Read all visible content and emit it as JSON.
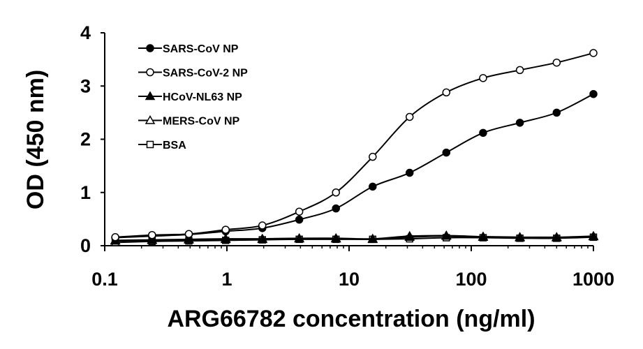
{
  "chart_data": {
    "type": "line",
    "title": "",
    "xlabel": "ARG66782 concentration (ng/ml)",
    "ylabel": "OD (450 nm)",
    "xscale": "log",
    "xlim": [
      0.1,
      1000
    ],
    "ylim": [
      0,
      4
    ],
    "xticks": [
      "0.1",
      "1",
      "10",
      "100",
      "1000"
    ],
    "yticks": [
      "0",
      "1",
      "2",
      "3",
      "4"
    ],
    "grid": false,
    "legend_position": "top-left",
    "x": [
      0.122,
      0.244,
      0.488,
      0.977,
      1.95,
      3.91,
      7.81,
      15.6,
      31.3,
      62.5,
      125,
      250,
      500,
      1000
    ],
    "series": [
      {
        "name": "SARS-CoV NP",
        "marker": "filled-circle",
        "values": [
          0.15,
          0.18,
          0.21,
          0.27,
          0.33,
          0.49,
          0.7,
          1.11,
          1.37,
          1.75,
          2.12,
          2.31,
          2.5,
          2.85
        ]
      },
      {
        "name": "SARS-CoV-2 NP",
        "marker": "open-circle",
        "values": [
          0.16,
          0.2,
          0.22,
          0.3,
          0.38,
          0.64,
          1.0,
          1.67,
          2.42,
          2.88,
          3.15,
          3.3,
          3.44,
          3.62
        ]
      },
      {
        "name": "HCoV-NL63 NP",
        "marker": "filled-triangle",
        "values": [
          0.1,
          0.11,
          0.12,
          0.13,
          0.13,
          0.14,
          0.14,
          0.13,
          0.18,
          0.19,
          0.17,
          0.16,
          0.16,
          0.18
        ]
      },
      {
        "name": "MERS-CoV NP",
        "marker": "open-triangle",
        "values": [
          0.09,
          0.1,
          0.11,
          0.12,
          0.12,
          0.13,
          0.13,
          0.12,
          0.16,
          0.18,
          0.16,
          0.15,
          0.15,
          0.17
        ]
      },
      {
        "name": "BSA",
        "marker": "open-square",
        "values": [
          0.06,
          0.08,
          0.09,
          0.1,
          0.11,
          0.12,
          0.12,
          0.12,
          0.13,
          0.15,
          0.15,
          0.14,
          0.14,
          0.16
        ]
      }
    ]
  },
  "colors": {
    "line": "#000000",
    "open_fill": "#ffffff",
    "background": "#ffffff"
  }
}
